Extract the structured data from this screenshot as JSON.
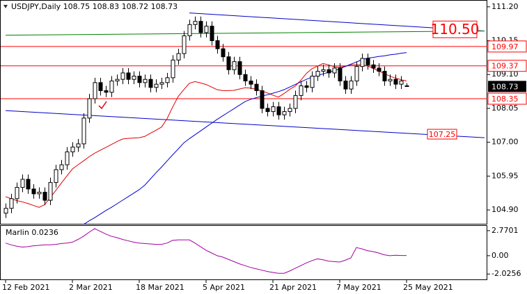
{
  "chart_data": [
    {
      "type": "candlestick",
      "title": "USDJPY,Daily  108.75 108.83 108.72 108.73",
      "categories": [
        "12 Feb 2021",
        null,
        null,
        null,
        null,
        null,
        null,
        null,
        null,
        null,
        null,
        null,
        "2 Mar 2021",
        null,
        null,
        null,
        null,
        null,
        null,
        null,
        null,
        null,
        null,
        null,
        "18 Mar 2021",
        null,
        null,
        null,
        null,
        null,
        null,
        null,
        null,
        null,
        null,
        null,
        "5 Apr 2021",
        null,
        null,
        null,
        null,
        null,
        null,
        null,
        null,
        null,
        null,
        null,
        "21 Apr 2021",
        null,
        null,
        null,
        null,
        null,
        null,
        null,
        null,
        null,
        null,
        null,
        "7 May 2021",
        null,
        null,
        null,
        null,
        null,
        null,
        null,
        null,
        null,
        null,
        null,
        "25 May 2021"
      ],
      "open": [
        104.8,
        104.95,
        105.25,
        105.6,
        105.85,
        105.55,
        105.4,
        105.45,
        105.2,
        105.75,
        106.15,
        106.3,
        106.7,
        106.85,
        106.95,
        107.75,
        108.35,
        108.85,
        108.6,
        108.55,
        108.9,
        108.95,
        109.15,
        108.95,
        109.05,
        108.85,
        108.95,
        108.7,
        108.8,
        108.85,
        109.0,
        109.55,
        109.75,
        110.3,
        110.65,
        110.75,
        110.4,
        110.6,
        110.15,
        109.9,
        109.65,
        109.25,
        109.5,
        109.1,
        108.9,
        108.8,
        108.6,
        108.05,
        107.95,
        108.1,
        107.85,
        107.95,
        108.05,
        108.45,
        108.75,
        108.7,
        109.05,
        109.2,
        109.25,
        109.15,
        109.3,
        108.9,
        108.65,
        108.9,
        109.35,
        109.6,
        109.4,
        109.3,
        109.2,
        108.9,
        108.95,
        108.8,
        108.75
      ],
      "high": [
        105.1,
        105.4,
        105.75,
        106.0,
        106.0,
        105.7,
        105.6,
        105.6,
        105.9,
        106.3,
        106.45,
        106.85,
        107.0,
        107.1,
        107.9,
        108.5,
        109.0,
        109.0,
        108.75,
        109.05,
        109.1,
        109.3,
        109.3,
        109.2,
        109.2,
        109.1,
        109.1,
        108.95,
        109.0,
        109.15,
        109.7,
        109.9,
        110.45,
        110.8,
        110.9,
        110.9,
        110.75,
        110.75,
        110.3,
        110.05,
        109.8,
        109.65,
        109.65,
        109.25,
        109.05,
        108.95,
        108.75,
        108.2,
        108.25,
        108.25,
        108.1,
        108.2,
        108.6,
        108.9,
        108.9,
        109.2,
        109.35,
        109.4,
        109.4,
        109.45,
        109.45,
        109.05,
        109.05,
        109.5,
        109.75,
        109.75,
        109.55,
        109.45,
        109.35,
        109.1,
        109.1,
        109.05,
        108.83
      ],
      "low": [
        104.65,
        104.8,
        105.1,
        105.45,
        105.4,
        105.25,
        105.25,
        105.05,
        105.05,
        105.6,
        106.0,
        106.15,
        106.55,
        106.7,
        106.8,
        107.6,
        108.2,
        108.45,
        108.4,
        108.4,
        108.75,
        108.8,
        108.8,
        108.8,
        108.7,
        108.7,
        108.55,
        108.55,
        108.65,
        108.7,
        108.85,
        109.4,
        109.6,
        110.15,
        110.5,
        110.25,
        110.25,
        110.0,
        109.75,
        109.5,
        109.1,
        109.1,
        108.95,
        108.75,
        108.65,
        108.45,
        107.9,
        107.8,
        107.8,
        107.7,
        107.7,
        107.8,
        107.9,
        108.3,
        108.55,
        108.55,
        108.9,
        109.05,
        109.0,
        109.0,
        108.75,
        108.5,
        108.5,
        108.75,
        109.2,
        109.25,
        109.15,
        109.05,
        108.75,
        108.75,
        108.65,
        108.65,
        108.72
      ],
      "close": [
        104.95,
        105.25,
        105.6,
        105.85,
        105.55,
        105.4,
        105.45,
        105.2,
        105.75,
        106.15,
        106.3,
        106.7,
        106.85,
        106.95,
        107.75,
        108.35,
        108.85,
        108.6,
        108.55,
        108.9,
        108.95,
        109.15,
        108.95,
        109.05,
        108.85,
        108.95,
        108.7,
        108.8,
        108.85,
        109.0,
        109.55,
        109.75,
        110.3,
        110.65,
        110.75,
        110.4,
        110.6,
        110.15,
        109.9,
        109.65,
        109.25,
        109.5,
        109.1,
        108.9,
        108.8,
        108.6,
        108.05,
        107.95,
        108.1,
        107.85,
        107.95,
        108.05,
        108.45,
        108.75,
        108.7,
        109.05,
        109.2,
        109.25,
        109.15,
        109.3,
        108.9,
        108.65,
        108.9,
        109.35,
        109.6,
        109.4,
        109.3,
        109.2,
        108.9,
        108.95,
        108.8,
        108.9,
        108.73
      ],
      "up_color": "#ffffff",
      "down_color": "#000000",
      "lines": [
        {
          "color": "#e00000",
          "values": [
            105.31,
            105.25,
            105.19,
            105.15,
            105.1,
            105.04,
            104.98,
            105.06,
            105.28,
            105.5,
            105.73,
            105.95,
            106.17,
            106.3,
            106.42,
            106.55,
            106.66,
            106.75,
            106.84,
            106.93,
            107.02,
            107.1,
            107.12,
            107.13,
            107.14,
            107.18,
            107.28,
            107.37,
            107.47,
            107.73,
            108.09,
            108.42,
            108.63,
            108.83,
            108.88,
            108.84,
            108.79,
            108.71,
            108.63,
            108.6,
            108.6,
            108.61,
            108.65,
            108.69,
            108.68,
            108.64,
            108.59,
            108.53,
            108.46,
            108.4,
            108.51,
            108.64,
            108.74,
            108.92,
            109.13,
            109.28,
            109.36,
            109.44,
            109.4,
            109.34,
            109.32,
            109.36,
            109.4,
            109.4,
            109.4,
            109.37,
            109.29,
            109.21,
            109.13,
            109.05,
            108.99,
            108.94,
            108.9
          ]
        },
        {
          "color": "#0000c8",
          "values": [
            null,
            null,
            null,
            null,
            null,
            null,
            null,
            null,
            null,
            null,
            null,
            null,
            null,
            null,
            104.45,
            104.56,
            104.66,
            104.77,
            104.88,
            104.98,
            105.09,
            105.2,
            105.31,
            105.42,
            105.53,
            105.67,
            105.86,
            106.05,
            106.23,
            106.42,
            106.61,
            106.79,
            106.98,
            107.11,
            107.23,
            107.35,
            107.47,
            107.59,
            107.71,
            107.82,
            107.93,
            108.04,
            108.15,
            108.26,
            108.33,
            108.38,
            108.43,
            108.47,
            108.52,
            108.57,
            108.63,
            108.71,
            108.79,
            108.87,
            108.95,
            109.02,
            109.07,
            109.12,
            109.17,
            109.22,
            109.28,
            109.35,
            109.42,
            109.49,
            109.56,
            109.61,
            109.63,
            109.66,
            109.68,
            109.71,
            109.73,
            109.76,
            109.78
          ]
        }
      ],
      "trendlines": [
        {
          "color": "#0000c8",
          "start": [
            33,
            111.01
          ],
          "end": [
            86,
            110.45
          ]
        },
        {
          "color": "#0000c8",
          "start": [
            0,
            107.98
          ],
          "end": [
            86,
            107.14
          ]
        },
        {
          "color": "#008000",
          "start": [
            0,
            110.32
          ],
          "end": [
            86,
            110.45
          ]
        }
      ],
      "levels": [
        109.97,
        109.37,
        108.35
      ],
      "level_color": "#ff0000",
      "annotations": [
        {
          "value": 110.5,
          "label": "110.50"
        },
        107.25
      ],
      "ylim": [
        104.47,
        111.39
      ],
      "yticks": [
        {
          "value": 111.2,
          "label": "111.20"
        },
        {
          "value": 110.15,
          "label": "110.15"
        },
        {
          "value": 109.1,
          "label": "109.10"
        },
        {
          "value": 108.05,
          "label": "108.05"
        },
        {
          "value": 107,
          "label": "107.00"
        },
        {
          "value": 105.95,
          "label": "105.95"
        },
        {
          "value": 104.9,
          "label": "104.90"
        }
      ],
      "grid": false
    },
    {
      "type": "line",
      "title": "Marlin 0.0236",
      "color": "#a000a0",
      "values": [
        1.4,
        1.2,
        1.05,
        0.95,
        1.0,
        1.1,
        1.15,
        1.2,
        1.2,
        1.25,
        1.35,
        1.4,
        1.5,
        1.8,
        2.15,
        2.6,
        3.0,
        2.7,
        2.4,
        2.15,
        2.0,
        1.8,
        1.65,
        1.5,
        1.4,
        1.35,
        1.3,
        1.25,
        1.25,
        1.4,
        1.7,
        1.75,
        1.75,
        1.75,
        1.4,
        1.0,
        0.6,
        0.3,
        0.0,
        -0.15,
        -0.4,
        -0.65,
        -0.9,
        -1.1,
        -1.3,
        -1.45,
        -1.6,
        -1.75,
        -1.85,
        -1.95,
        -1.95,
        -1.7,
        -1.4,
        -1.1,
        -0.8,
        -0.55,
        -0.35,
        -0.45,
        -0.6,
        -0.65,
        -0.7,
        -0.5,
        -0.25,
        0.9,
        0.75,
        0.55,
        0.45,
        0.3,
        0.1,
        0.0,
        0.05,
        0.02,
        0.0236
      ],
      "ylim": [
        -2.7,
        3.3
      ],
      "yticks": [
        2.7701,
        {
          "value": 0,
          "label": "0.00"
        },
        -2.0256
      ]
    }
  ]
}
